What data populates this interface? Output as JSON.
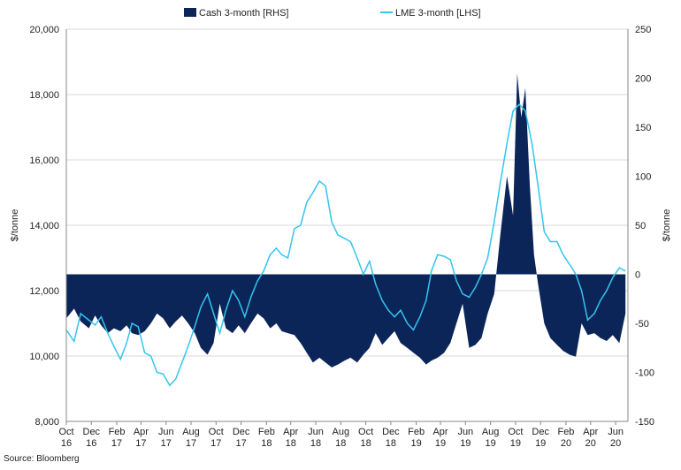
{
  "chart_data": {
    "type": "area+line",
    "legend": [
      {
        "label": "Cash 3-month [RHS]",
        "color": "#0b2559",
        "kind": "area"
      },
      {
        "label": "LME 3-month [LHS]",
        "color": "#33c5ee",
        "kind": "line"
      }
    ],
    "legend_position": "top-center",
    "y_left": {
      "label": "$/tonne",
      "min": 8000,
      "max": 20000,
      "ticks": [
        "8,000",
        "10,000",
        "12,000",
        "14,000",
        "16,000",
        "18,000",
        "20,000"
      ]
    },
    "y_right": {
      "label": "$/tonne",
      "min": -150,
      "max": 250,
      "ticks": [
        "-150",
        "-100",
        "-50",
        "0",
        "50",
        "100",
        "150",
        "200",
        "250"
      ]
    },
    "x_tick_labels": [
      [
        "Oct",
        "16"
      ],
      [
        "Dec",
        "16"
      ],
      [
        "Feb",
        "17"
      ],
      [
        "Apr",
        "17"
      ],
      [
        "Jun",
        "17"
      ],
      [
        "Aug",
        "17"
      ],
      [
        "Oct",
        "17"
      ],
      [
        "Dec",
        "17"
      ],
      [
        "Feb",
        "18"
      ],
      [
        "Apr",
        "18"
      ],
      [
        "Jun",
        "18"
      ],
      [
        "Aug",
        "18"
      ],
      [
        "Oct",
        "18"
      ],
      [
        "Dec",
        "18"
      ],
      [
        "Feb",
        "19"
      ],
      [
        "Apr",
        "19"
      ],
      [
        "Jun",
        "19"
      ],
      [
        "Aug",
        "19"
      ],
      [
        "Oct",
        "19"
      ],
      [
        "Dec",
        "19"
      ],
      [
        "Feb",
        "20"
      ],
      [
        "Apr",
        "20"
      ],
      [
        "Jun",
        "20"
      ]
    ],
    "grid": "horizontal",
    "series": [
      {
        "name": "LME 3-month [LHS]",
        "axis": "left",
        "points": [
          [
            "2016-10-01",
            10800
          ],
          [
            "2016-10-20",
            10450
          ],
          [
            "2016-11-05",
            11300
          ],
          [
            "2016-11-25",
            11100
          ],
          [
            "2016-12-10",
            10950
          ],
          [
            "2016-12-25",
            11200
          ],
          [
            "2017-01-10",
            10700
          ],
          [
            "2017-01-25",
            10300
          ],
          [
            "2017-02-10",
            9900
          ],
          [
            "2017-02-25",
            10400
          ],
          [
            "2017-03-10",
            11000
          ],
          [
            "2017-03-25",
            10900
          ],
          [
            "2017-04-10",
            10100
          ],
          [
            "2017-04-25",
            10000
          ],
          [
            "2017-05-10",
            9500
          ],
          [
            "2017-05-25",
            9450
          ],
          [
            "2017-06-10",
            9100
          ],
          [
            "2017-06-25",
            9300
          ],
          [
            "2017-07-10",
            9800
          ],
          [
            "2017-07-25",
            10300
          ],
          [
            "2017-08-10",
            10900
          ],
          [
            "2017-08-25",
            11500
          ],
          [
            "2017-09-10",
            11900
          ],
          [
            "2017-09-25",
            11300
          ],
          [
            "2017-10-10",
            10700
          ],
          [
            "2017-10-25",
            11400
          ],
          [
            "2017-11-10",
            12000
          ],
          [
            "2017-11-25",
            11700
          ],
          [
            "2017-12-10",
            11200
          ],
          [
            "2017-12-25",
            11800
          ],
          [
            "2018-01-10",
            12300
          ],
          [
            "2018-01-25",
            12600
          ],
          [
            "2018-02-10",
            13100
          ],
          [
            "2018-02-25",
            13300
          ],
          [
            "2018-03-10",
            13100
          ],
          [
            "2018-03-25",
            13000
          ],
          [
            "2018-04-10",
            13900
          ],
          [
            "2018-04-25",
            14000
          ],
          [
            "2018-05-10",
            14700
          ],
          [
            "2018-05-25",
            15000
          ],
          [
            "2018-06-10",
            15350
          ],
          [
            "2018-06-25",
            15200
          ],
          [
            "2018-07-10",
            14100
          ],
          [
            "2018-07-25",
            13700
          ],
          [
            "2018-08-10",
            13600
          ],
          [
            "2018-08-25",
            13500
          ],
          [
            "2018-09-10",
            13000
          ],
          [
            "2018-09-25",
            12500
          ],
          [
            "2018-10-10",
            12900
          ],
          [
            "2018-10-25",
            12200
          ],
          [
            "2018-11-10",
            11700
          ],
          [
            "2018-11-25",
            11400
          ],
          [
            "2018-12-10",
            11200
          ],
          [
            "2018-12-25",
            11400
          ],
          [
            "2019-01-10",
            11000
          ],
          [
            "2019-01-25",
            10800
          ],
          [
            "2019-02-10",
            11200
          ],
          [
            "2019-02-25",
            11700
          ],
          [
            "2019-03-10",
            12600
          ],
          [
            "2019-03-25",
            13100
          ],
          [
            "2019-04-10",
            13050
          ],
          [
            "2019-04-25",
            12950
          ],
          [
            "2019-05-10",
            12300
          ],
          [
            "2019-05-25",
            11900
          ],
          [
            "2019-06-10",
            11800
          ],
          [
            "2019-06-25",
            12100
          ],
          [
            "2019-07-10",
            12500
          ],
          [
            "2019-07-25",
            13000
          ],
          [
            "2019-08-10",
            14100
          ],
          [
            "2019-08-25",
            15300
          ],
          [
            "2019-09-10",
            16500
          ],
          [
            "2019-09-25",
            17500
          ],
          [
            "2019-10-10",
            17700
          ],
          [
            "2019-10-25",
            17500
          ],
          [
            "2019-11-10",
            16500
          ],
          [
            "2019-11-25",
            15200
          ],
          [
            "2019-12-10",
            13800
          ],
          [
            "2019-12-25",
            13500
          ],
          [
            "2020-01-10",
            13500
          ],
          [
            "2020-01-25",
            13100
          ],
          [
            "2020-02-10",
            12800
          ],
          [
            "2020-02-25",
            12500
          ],
          [
            "2020-03-10",
            12000
          ],
          [
            "2020-03-25",
            11100
          ],
          [
            "2020-04-10",
            11300
          ],
          [
            "2020-04-25",
            11700
          ],
          [
            "2020-05-10",
            12000
          ],
          [
            "2020-05-25",
            12400
          ],
          [
            "2020-06-10",
            12700
          ],
          [
            "2020-06-25",
            12600
          ]
        ]
      },
      {
        "name": "Cash 3-month [RHS]",
        "axis": "right",
        "points": [
          [
            "2016-10-01",
            -45
          ],
          [
            "2016-10-20",
            -35
          ],
          [
            "2016-11-05",
            -48
          ],
          [
            "2016-11-25",
            -55
          ],
          [
            "2016-12-10",
            -42
          ],
          [
            "2016-12-25",
            -52
          ],
          [
            "2017-01-10",
            -60
          ],
          [
            "2017-01-25",
            -55
          ],
          [
            "2017-02-10",
            -58
          ],
          [
            "2017-02-25",
            -52
          ],
          [
            "2017-03-10",
            -60
          ],
          [
            "2017-03-25",
            -62
          ],
          [
            "2017-04-10",
            -58
          ],
          [
            "2017-04-25",
            -50
          ],
          [
            "2017-05-10",
            -40
          ],
          [
            "2017-05-25",
            -45
          ],
          [
            "2017-06-10",
            -55
          ],
          [
            "2017-06-25",
            -48
          ],
          [
            "2017-07-10",
            -42
          ],
          [
            "2017-07-25",
            -50
          ],
          [
            "2017-08-10",
            -60
          ],
          [
            "2017-08-25",
            -75
          ],
          [
            "2017-09-10",
            -82
          ],
          [
            "2017-09-25",
            -70
          ],
          [
            "2017-10-10",
            -30
          ],
          [
            "2017-10-25",
            -55
          ],
          [
            "2017-11-10",
            -60
          ],
          [
            "2017-11-25",
            -52
          ],
          [
            "2017-12-10",
            -60
          ],
          [
            "2017-12-25",
            -50
          ],
          [
            "2018-01-10",
            -40
          ],
          [
            "2018-01-25",
            -45
          ],
          [
            "2018-02-10",
            -55
          ],
          [
            "2018-02-25",
            -50
          ],
          [
            "2018-03-10",
            -58
          ],
          [
            "2018-03-25",
            -60
          ],
          [
            "2018-04-10",
            -62
          ],
          [
            "2018-04-25",
            -70
          ],
          [
            "2018-05-10",
            -80
          ],
          [
            "2018-05-25",
            -90
          ],
          [
            "2018-06-10",
            -85
          ],
          [
            "2018-06-25",
            -90
          ],
          [
            "2018-07-10",
            -95
          ],
          [
            "2018-07-25",
            -92
          ],
          [
            "2018-08-10",
            -88
          ],
          [
            "2018-08-25",
            -85
          ],
          [
            "2018-09-10",
            -90
          ],
          [
            "2018-09-25",
            -82
          ],
          [
            "2018-10-10",
            -75
          ],
          [
            "2018-10-25",
            -60
          ],
          [
            "2018-11-10",
            -72
          ],
          [
            "2018-11-25",
            -65
          ],
          [
            "2018-12-10",
            -58
          ],
          [
            "2018-12-25",
            -70
          ],
          [
            "2019-01-10",
            -75
          ],
          [
            "2019-01-25",
            -80
          ],
          [
            "2019-02-10",
            -85
          ],
          [
            "2019-02-25",
            -92
          ],
          [
            "2019-03-10",
            -88
          ],
          [
            "2019-03-25",
            -85
          ],
          [
            "2019-04-10",
            -80
          ],
          [
            "2019-04-25",
            -70
          ],
          [
            "2019-05-10",
            -50
          ],
          [
            "2019-05-25",
            -30
          ],
          [
            "2019-06-10",
            -75
          ],
          [
            "2019-06-25",
            -72
          ],
          [
            "2019-07-10",
            -65
          ],
          [
            "2019-07-25",
            -40
          ],
          [
            "2019-08-10",
            -20
          ],
          [
            "2019-08-25",
            40
          ],
          [
            "2019-09-10",
            100
          ],
          [
            "2019-09-25",
            60
          ],
          [
            "2019-10-05",
            205
          ],
          [
            "2019-10-15",
            160
          ],
          [
            "2019-10-25",
            190
          ],
          [
            "2019-11-05",
            90
          ],
          [
            "2019-11-15",
            20
          ],
          [
            "2019-11-25",
            -10
          ],
          [
            "2019-12-10",
            -50
          ],
          [
            "2019-12-25",
            -65
          ],
          [
            "2020-01-10",
            -72
          ],
          [
            "2020-01-25",
            -78
          ],
          [
            "2020-02-10",
            -82
          ],
          [
            "2020-02-25",
            -84
          ],
          [
            "2020-03-10",
            -50
          ],
          [
            "2020-03-25",
            -62
          ],
          [
            "2020-04-10",
            -60
          ],
          [
            "2020-04-25",
            -65
          ],
          [
            "2020-05-10",
            -68
          ],
          [
            "2020-05-25",
            -62
          ],
          [
            "2020-06-10",
            -70
          ],
          [
            "2020-06-25",
            -40
          ]
        ]
      }
    ]
  },
  "source": "Source: Bloomberg"
}
